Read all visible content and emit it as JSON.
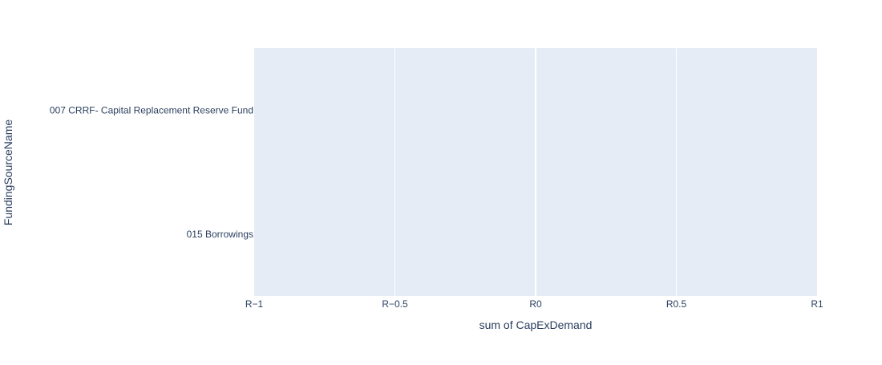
{
  "chart_data": {
    "type": "bar",
    "orientation": "horizontal",
    "categories": [
      "007 CRRF- Capital Replacement Reserve Fund",
      "015 Borrowings"
    ],
    "values": [
      0,
      0
    ],
    "xlabel": "sum of CapExDemand",
    "ylabel": "FundingSourceName",
    "xlim": [
      -1,
      1
    ],
    "x_ticks": [
      -1,
      -0.5,
      0,
      0.5,
      1
    ],
    "x_tick_labels": [
      "R−1",
      "R−0.5",
      "R0",
      "R0.5",
      "R1"
    ],
    "grid": true,
    "legend": "none"
  },
  "colors": {
    "plot_background": "#e5ecf6",
    "gridline": "#ffffff",
    "text": "#2a3f5f",
    "bar": "#636efa"
  }
}
